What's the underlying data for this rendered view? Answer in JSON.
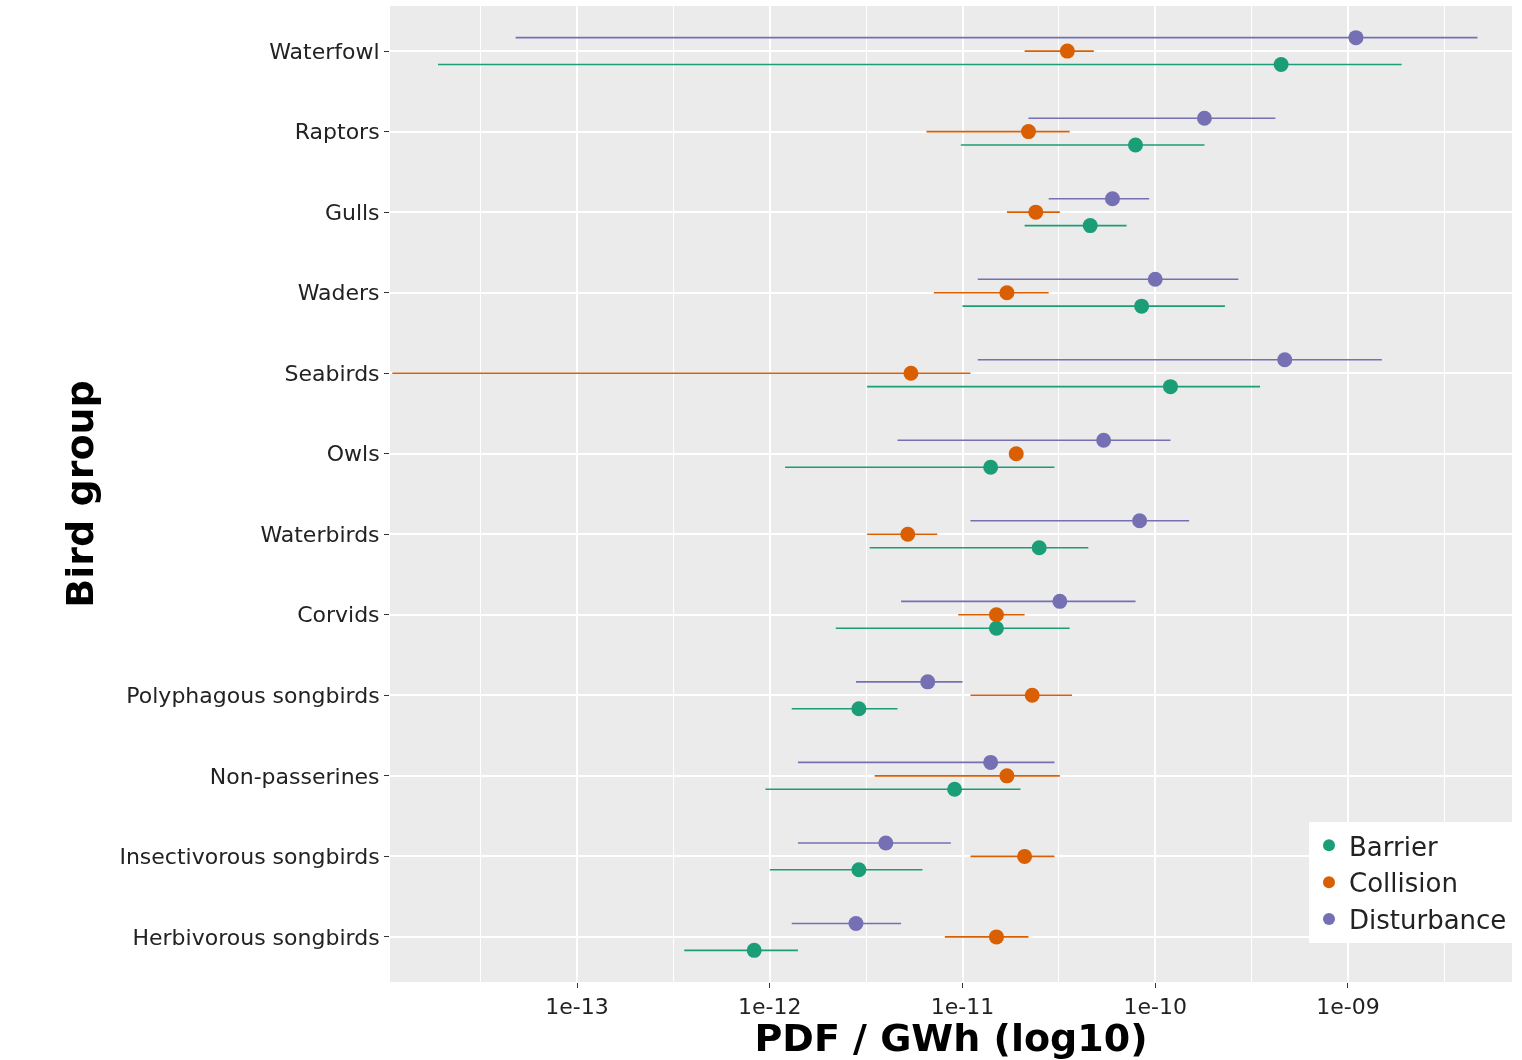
{
  "chart_data": {
    "type": "scatter",
    "orientation": "horizontal",
    "xlabel": "PDF / GWh (log10)",
    "ylabel": "Bird group",
    "categories": [
      "Waterfowl",
      "Raptors",
      "Gulls",
      "Waders",
      "Seabirds",
      "Owls",
      "Waterbirds",
      "Corvids",
      "Polyphagous songbirds",
      "Non-passerines",
      "Insectivorous songbirds",
      "Herbivorous songbirds"
    ],
    "series": [
      {
        "name": "Barrier",
        "color": "#1b9e77",
        "values": [
          4.5e-10,
          7.9e-11,
          4.6e-11,
          8.5e-11,
          1.2e-10,
          1.4e-11,
          2.5e-11,
          1.5e-11,
          2.9e-12,
          9.1e-12,
          2.9e-12,
          8.3e-13
        ],
        "errors": [
          [
            1.9e-14,
            1.9e-09
          ],
          [
            9.8e-12,
            1.8e-10
          ],
          [
            2.1e-11,
            7.1e-11
          ],
          [
            1e-11,
            2.3e-10
          ],
          [
            3.2e-12,
            3.5e-10
          ],
          [
            1.2e-12,
            3e-11
          ],
          [
            3.3e-12,
            4.5e-11
          ],
          [
            2.2e-12,
            3.6e-11
          ],
          [
            1.3e-12,
            4.6e-12
          ],
          [
            9.5e-13,
            2e-11
          ],
          [
            1e-12,
            6.2e-12
          ],
          [
            3.6e-13,
            1.4e-12
          ]
        ]
      },
      {
        "name": "Collision",
        "color": "#d95f02",
        "values": [
          3.5e-11,
          2.2e-11,
          2.4e-11,
          1.7e-11,
          5.4e-12,
          1.9e-11,
          5.2e-12,
          1.5e-11,
          2.3e-11,
          1.7e-11,
          2.1e-11,
          1.5e-11
        ],
        "errors": [
          [
            2.1e-11,
            4.8e-11
          ],
          [
            6.5e-12,
            3.6e-11
          ],
          [
            1.7e-11,
            3.2e-11
          ],
          [
            7.1e-12,
            2.8e-11
          ],
          [
            1.1e-14,
            1.1e-11
          ],
          null,
          [
            3.2e-12,
            7.4e-12
          ],
          [
            9.5e-12,
            2.1e-11
          ],
          [
            1.1e-11,
            3.7e-11
          ],
          [
            3.5e-12,
            3.2e-11
          ],
          [
            1.1e-11,
            3e-11
          ],
          [
            8.1e-12,
            2.2e-11
          ]
        ]
      },
      {
        "name": "Disturbance",
        "color": "#7570b3",
        "values": [
          1.1e-09,
          1.8e-10,
          6e-11,
          1e-10,
          4.7e-10,
          5.4e-11,
          8.3e-11,
          3.2e-11,
          6.6e-12,
          1.4e-11,
          4e-12,
          2.8e-12
        ],
        "errors": [
          [
            4.8e-14,
            4.7e-09
          ],
          [
            2.2e-11,
            4.2e-10
          ],
          [
            2.8e-11,
            9.3e-11
          ],
          [
            1.2e-11,
            2.7e-10
          ],
          [
            1.2e-11,
            1.5e-09
          ],
          [
            4.6e-12,
            1.2e-10
          ],
          [
            1.1e-11,
            1.5e-10
          ],
          [
            4.8e-12,
            7.9e-11
          ],
          [
            2.8e-12,
            1e-11
          ],
          [
            1.4e-12,
            3e-11
          ],
          [
            1.4e-12,
            8.7e-12
          ],
          [
            1.3e-12,
            4.8e-12
          ]
        ]
      }
    ],
    "log": "x",
    "xlim": [
      1.07e-14,
      7.1e-09
    ],
    "xticks": [
      {
        "value": 3.16e-14,
        "label": null
      },
      {
        "value": 1e-13,
        "label": "1e-13"
      },
      {
        "value": 3.16e-13,
        "label": null
      },
      {
        "value": 1e-12,
        "label": "1e-12"
      },
      {
        "value": 3.16e-12,
        "label": null
      },
      {
        "value": 1e-11,
        "label": "1e-11"
      },
      {
        "value": 3.16e-11,
        "label": null
      },
      {
        "value": 1e-10,
        "label": "1e-10"
      },
      {
        "value": 3.16e-10,
        "label": null
      },
      {
        "value": 1e-09,
        "label": "1e-09"
      },
      {
        "value": 3.16e-09,
        "label": null
      }
    ],
    "grid": true,
    "legend": "bottom right",
    "marker": "circle"
  }
}
